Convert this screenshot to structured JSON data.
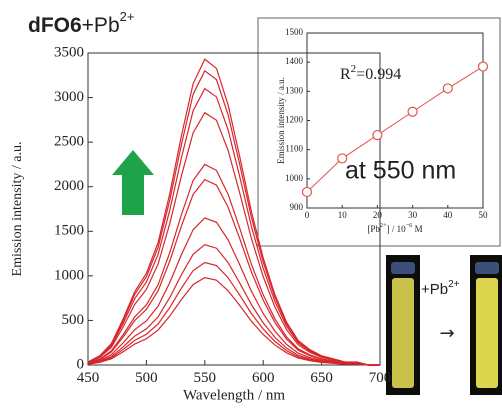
{
  "chart_data": [
    {
      "type": "line",
      "title": {
        "bold": "dFO6",
        "text": "+Pb",
        "sup": "2+"
      },
      "xlabel": "Wavelength / nm",
      "ylabel": "Emission intensity / a.u.",
      "x": [
        450,
        460,
        470,
        480,
        490,
        500,
        510,
        520,
        530,
        540,
        550,
        560,
        570,
        580,
        590,
        600,
        610,
        620,
        630,
        640,
        650,
        660,
        670,
        680,
        690,
        700
      ],
      "xlim": [
        450,
        700
      ],
      "xticks": [
        450,
        500,
        550,
        600,
        650,
        700
      ],
      "ylim": [
        0,
        3500
      ],
      "yticks": [
        0,
        500,
        1000,
        1500,
        2000,
        2500,
        3000,
        3500
      ],
      "series": [
        {
          "color": "#d7262b",
          "values": [
            10,
            29,
            69,
            147,
            235,
            294,
            392,
            549,
            735,
            902,
            980,
            951,
            833,
            666,
            490,
            343,
            225,
            137,
            78,
            49,
            29,
            20,
            10,
            10,
            0,
            0
          ]
        },
        {
          "color": "#d7262b",
          "values": [
            12,
            35,
            81,
            173,
            276,
            345,
            460,
            644,
            863,
            1058,
            1150,
            1116,
            978,
            782,
            575,
            403,
            265,
            161,
            92,
            58,
            35,
            23,
            12,
            12,
            0,
            0
          ]
        },
        {
          "color": "#d7262b",
          "values": [
            14,
            41,
            95,
            203,
            324,
            405,
            540,
            756,
            1013,
            1242,
            1350,
            1310,
            1148,
            918,
            675,
            473,
            311,
            189,
            108,
            68,
            41,
            27,
            14,
            14,
            0,
            0
          ]
        },
        {
          "color": "#d7262b",
          "values": [
            17,
            50,
            116,
            248,
            396,
            495,
            660,
            924,
            1238,
            1518,
            1650,
            1601,
            1403,
            1122,
            825,
            578,
            380,
            231,
            132,
            83,
            50,
            33,
            17,
            17,
            0,
            0
          ]
        },
        {
          "color": "#d7262b",
          "values": [
            21,
            62,
            146,
            312,
            499,
            624,
            832,
            1165,
            1560,
            1914,
            2080,
            2018,
            1768,
            1414,
            1040,
            728,
            478,
            291,
            166,
            104,
            62,
            42,
            21,
            21,
            0,
            0
          ]
        },
        {
          "color": "#d7262b",
          "values": [
            23,
            68,
            158,
            338,
            540,
            675,
            900,
            1260,
            1688,
            2070,
            2250,
            2183,
            1913,
            1530,
            1125,
            788,
            518,
            315,
            180,
            113,
            68,
            45,
            23,
            23,
            0,
            0
          ]
        },
        {
          "color": "#d7262b",
          "values": [
            28,
            85,
            198,
            425,
            679,
            849,
            1132,
            1585,
            2123,
            2604,
            2830,
            2745,
            2406,
            1924,
            1415,
            991,
            651,
            396,
            226,
            142,
            85,
            57,
            28,
            28,
            0,
            0
          ]
        },
        {
          "color": "#d7262b",
          "values": [
            31,
            93,
            217,
            465,
            744,
            930,
            1240,
            1736,
            2325,
            2852,
            3100,
            3007,
            2635,
            2108,
            1550,
            1085,
            713,
            434,
            248,
            155,
            93,
            62,
            31,
            31,
            0,
            0
          ]
        },
        {
          "color": "#d7262b",
          "values": [
            33,
            99,
            231,
            495,
            792,
            990,
            1320,
            1848,
            2475,
            3036,
            3300,
            3201,
            2805,
            2244,
            1650,
            1155,
            759,
            462,
            264,
            165,
            99,
            66,
            33,
            33,
            0,
            0
          ]
        },
        {
          "color": "#d7262b",
          "values": [
            34,
            103,
            240,
            515,
            823,
            1029,
            1372,
            1921,
            2573,
            3156,
            3430,
            3327,
            2916,
            2332,
            1715,
            1201,
            789,
            480,
            274,
            172,
            103,
            69,
            34,
            34,
            0,
            0
          ]
        }
      ]
    },
    {
      "type": "line",
      "xlabel": [
        "[Pb",
        "2+",
        "] / 10",
        "−6",
        " M"
      ],
      "ylabel": "Emission intensity / a.u.",
      "annotations": {
        "r_text": "R",
        "r_sup": "2",
        "r_value": "=0.994",
        "wavelength": "at 550 nm"
      },
      "x": [
        0,
        10,
        20,
        30,
        40,
        50
      ],
      "xlim": [
        0,
        50
      ],
      "xticks": [
        0,
        10,
        20,
        30,
        40,
        50
      ],
      "ylim": [
        900,
        1500
      ],
      "yticks": [
        900,
        1000,
        1100,
        1200,
        1300,
        1400,
        1500
      ],
      "series": [
        {
          "color": "#e0564c",
          "marker": "circle",
          "values": [
            955,
            1070,
            1150,
            1230,
            1310,
            1385
          ]
        }
      ]
    }
  ],
  "photos": {
    "label": "+Pb",
    "label_sup": "2+",
    "arrow": "→"
  }
}
